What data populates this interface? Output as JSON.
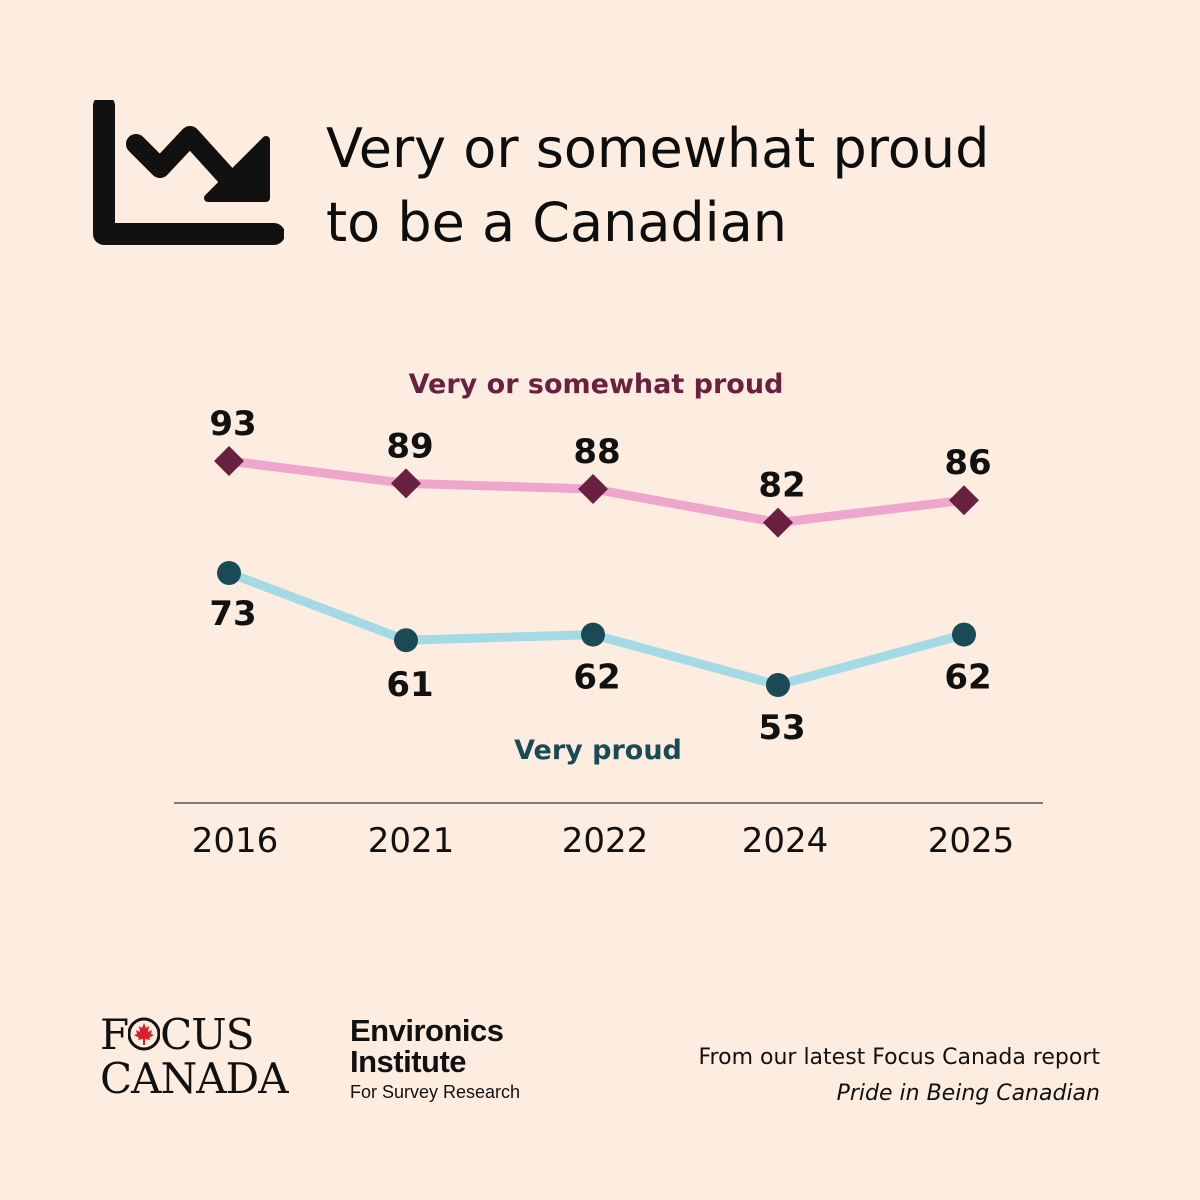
{
  "header": {
    "icon": "trending-down-chart-icon",
    "title_line1": "Very or somewhat proud",
    "title_line2": "to be a Canadian"
  },
  "chart_data": {
    "type": "line",
    "categories": [
      "2016",
      "2021",
      "2022",
      "2024",
      "2025"
    ],
    "series": [
      {
        "name": "Very or somewhat proud",
        "values": [
          93,
          89,
          88,
          82,
          86
        ],
        "line_color": "#eea6cc",
        "marker_color": "#6a2040",
        "marker": "diamond"
      },
      {
        "name": "Very proud",
        "values": [
          73,
          61,
          62,
          53,
          62
        ],
        "line_color": "#a3dae6",
        "marker_color": "#1b4a57",
        "marker": "circle"
      }
    ],
    "label_color": "#111111",
    "axis_line_color": "#555555"
  },
  "footer": {
    "focus_line1_a": "F",
    "focus_line1_b": "CUS",
    "focus_line2": "CANADA",
    "env_line1": "Environics",
    "env_line2": "Institute",
    "env_line3": "For Survey Research",
    "source_line1": "From our latest Focus Canada report",
    "source_line2": "Pride in Being Canadian"
  }
}
